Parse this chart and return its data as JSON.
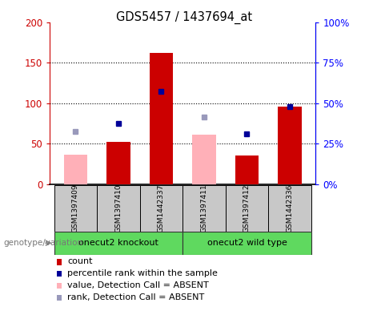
{
  "title": "GDS5457 / 1437694_at",
  "samples": [
    "GSM1397409",
    "GSM1397410",
    "GSM1442337",
    "GSM1397411",
    "GSM1397412",
    "GSM1442336"
  ],
  "red_bars": [
    0,
    52,
    162,
    0,
    35,
    96
  ],
  "pink_bars": [
    36,
    0,
    0,
    61,
    0,
    0
  ],
  "blue_squares": [
    null,
    75,
    115,
    null,
    62,
    96
  ],
  "light_blue_squares": [
    65,
    null,
    null,
    83,
    null,
    null
  ],
  "group_bg": "#c8c8c8",
  "ylim_left": [
    0,
    200
  ],
  "ylim_right": [
    0,
    100
  ],
  "yticks_left": [
    0,
    50,
    100,
    150,
    200
  ],
  "yticks_right": [
    0,
    25,
    50,
    75,
    100
  ],
  "ytick_labels_left": [
    "0",
    "50",
    "100",
    "150",
    "200"
  ],
  "ytick_labels_right": [
    "0%",
    "25%",
    "50%",
    "75%",
    "100%"
  ],
  "red_color": "#CC0000",
  "pink_color": "#FFB0B8",
  "blue_color": "#000099",
  "light_blue_color": "#9999BB",
  "bar_width": 0.55,
  "legend_items": [
    {
      "label": "count",
      "color": "#CC0000"
    },
    {
      "label": "percentile rank within the sample",
      "color": "#000099"
    },
    {
      "label": "value, Detection Call = ABSENT",
      "color": "#FFB0B8"
    },
    {
      "label": "rank, Detection Call = ABSENT",
      "color": "#9999BB"
    }
  ]
}
